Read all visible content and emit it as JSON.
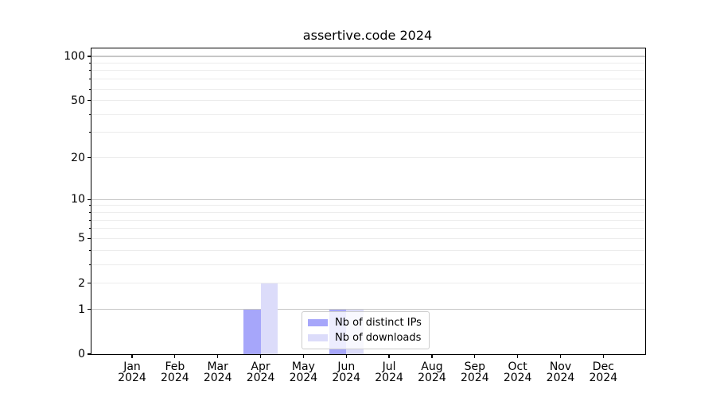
{
  "chart_data": {
    "type": "bar",
    "title": "assertive.code 2024",
    "x_months": [
      "Jan",
      "Feb",
      "Mar",
      "Apr",
      "May",
      "Jun",
      "Jul",
      "Aug",
      "Sep",
      "Oct",
      "Nov",
      "Dec"
    ],
    "x_year": "2024",
    "series": [
      {
        "name": "Nb of distinct IPs",
        "color": "#a6a6fa",
        "values": [
          0,
          0,
          0,
          1,
          0,
          1,
          0,
          0,
          0,
          0,
          0,
          0
        ]
      },
      {
        "name": "Nb of downloads",
        "color": "#dcdcfa",
        "values": [
          0,
          0,
          0,
          2,
          0,
          1,
          0,
          0,
          0,
          0,
          0,
          0
        ]
      }
    ],
    "yscale": "log1p",
    "ylim": [
      0,
      113
    ],
    "y_labeled_ticks": [
      0,
      1,
      2,
      5,
      10,
      20,
      50,
      100
    ],
    "y_major_gridlines": [
      1,
      10,
      100
    ],
    "y_minor_gridlines": [
      2,
      3,
      4,
      5,
      6,
      7,
      8,
      9,
      20,
      30,
      40,
      50,
      60,
      70,
      80,
      90
    ],
    "grid": true,
    "legend_position": "lower center",
    "colors": {
      "major_grid": "#c6c6c6",
      "minor_grid": "#ececec",
      "spine": "#000000",
      "text": "#000000",
      "legend_border": "#cccccc",
      "legend_background": "rgba(255,255,255,0.8)"
    }
  }
}
